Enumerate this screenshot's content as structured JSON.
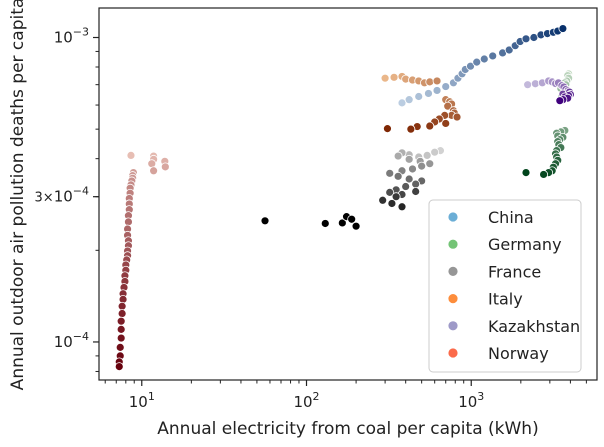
{
  "chart_data": {
    "type": "scatter",
    "title": "",
    "xlabel": "Annual electricity from coal per capita (kWh)",
    "ylabel": "Annual outdoor air pollution deaths per capita",
    "xscale": "log",
    "yscale": "log",
    "xlim": [
      5.5,
      5800
    ],
    "ylim": [
      7.5e-05,
      0.00125
    ],
    "x_ticks": [
      {
        "value": 10,
        "base": "10",
        "exp": "1"
      },
      {
        "value": 100,
        "base": "10",
        "exp": "2"
      },
      {
        "value": 1000,
        "base": "10",
        "exp": "3"
      }
    ],
    "y_ticks": [
      {
        "value": 0.0001,
        "base": "10",
        "exp": "−4",
        "mantissa": ""
      },
      {
        "value": 0.0003,
        "base": "10",
        "exp": "−4",
        "mantissa": "3×"
      },
      {
        "value": 0.001,
        "base": "10",
        "exp": "−3",
        "mantissa": ""
      }
    ],
    "legend_position": "lower-right",
    "series": [
      {
        "name": "China",
        "color": "#6baed6",
        "cmap": [
          "#dbe9f6",
          "#08306b"
        ],
        "points": [
          [
            380,
            0.00061
          ],
          [
            420,
            0.000625
          ],
          [
            480,
            0.00064
          ],
          [
            550,
            0.000655
          ],
          [
            620,
            0.00067
          ],
          [
            700,
            0.00069
          ],
          [
            780,
            0.00071
          ],
          [
            830,
            0.000735
          ],
          [
            880,
            0.00076
          ],
          [
            920,
            0.000785
          ],
          [
            990,
            0.000805
          ],
          [
            1080,
            0.00083
          ],
          [
            1200,
            0.00085
          ],
          [
            1350,
            0.00087
          ],
          [
            1550,
            0.00089
          ],
          [
            1700,
            0.00091
          ],
          [
            1850,
            0.00094
          ],
          [
            1980,
            0.00097
          ],
          [
            2150,
            0.00099
          ],
          [
            2400,
            0.001
          ],
          [
            2650,
            0.00102
          ],
          [
            2900,
            0.00103
          ],
          [
            3150,
            0.00104
          ],
          [
            3350,
            0.00105
          ],
          [
            3600,
            0.00107
          ]
        ]
      },
      {
        "name": "Germany",
        "color": "#74c476",
        "cmap": [
          "#e5f5e0",
          "#00441b"
        ],
        "points": [
          [
            3900,
            0.00076
          ],
          [
            3850,
            0.00075
          ],
          [
            3900,
            0.000735
          ],
          [
            3800,
            0.00072
          ],
          [
            3700,
            0.00071
          ],
          [
            3750,
            0.0007
          ],
          [
            3600,
            0.00069
          ],
          [
            3500,
            0.00068
          ],
          [
            3700,
            0.000665
          ],
          [
            3800,
            0.00065
          ],
          [
            3550,
            0.00064
          ],
          [
            3700,
            0.000495
          ],
          [
            3500,
            0.00049
          ],
          [
            3300,
            0.000485
          ],
          [
            3350,
            0.000475
          ],
          [
            3600,
            0.00047
          ],
          [
            3450,
            0.000462
          ],
          [
            3350,
            0.000455
          ],
          [
            3400,
            0.000445
          ],
          [
            3500,
            0.000435
          ],
          [
            3300,
            0.000425
          ],
          [
            3250,
            0.000415
          ],
          [
            3300,
            0.000405
          ],
          [
            3350,
            0.000395
          ],
          [
            3250,
            0.000385
          ],
          [
            3150,
            0.000375
          ],
          [
            3100,
            0.000365
          ],
          [
            2950,
            0.00036
          ],
          [
            2750,
            0.000355
          ],
          [
            2150,
            0.00036
          ]
        ]
      },
      {
        "name": "France",
        "color": "#969696",
        "cmap": [
          "#f0f0f0",
          "#252525"
        ],
        "points": [
          [
            650,
            0.000425
          ],
          [
            600,
            0.00042
          ],
          [
            540,
            0.00041
          ],
          [
            480,
            0.000405
          ],
          [
            420,
            0.000412
          ],
          [
            380,
            0.000418
          ],
          [
            360,
            0.000408
          ],
          [
            420,
            0.000398
          ],
          [
            490,
            0.000392
          ],
          [
            560,
            0.000385
          ],
          [
            500,
            0.000378
          ],
          [
            440,
            0.00037
          ],
          [
            380,
            0.000365
          ],
          [
            320,
            0.000358
          ],
          [
            360,
            0.00035
          ],
          [
            420,
            0.000343
          ],
          [
            500,
            0.000338
          ],
          [
            460,
            0.00033
          ],
          [
            400,
            0.000324
          ],
          [
            350,
            0.000316
          ],
          [
            320,
            0.00031
          ],
          [
            380,
            0.000305
          ],
          [
            460,
            0.000312
          ],
          [
            350,
            0.0003
          ],
          [
            290,
            0.000292
          ],
          [
            330,
            0.000285
          ],
          [
            380,
            0.000278
          ]
        ]
      },
      {
        "name": "Italy",
        "color": "#fd8d3c",
        "cmap": [
          "#fdd0a2",
          "#7f2704"
        ],
        "points": [
          [
            300,
            0.000735
          ],
          [
            340,
            0.00074
          ],
          [
            380,
            0.000745
          ],
          [
            400,
            0.00073
          ],
          [
            440,
            0.000725
          ],
          [
            480,
            0.00072
          ],
          [
            520,
            0.00071
          ],
          [
            560,
            0.000715
          ],
          [
            620,
            0.00072
          ],
          [
            700,
            0.000625
          ],
          [
            740,
            0.000615
          ],
          [
            760,
            0.000605
          ],
          [
            720,
            0.000595
          ],
          [
            780,
            0.000575
          ],
          [
            790,
            0.000565
          ],
          [
            760,
            0.000555
          ],
          [
            820,
            0.000548
          ],
          [
            690,
            0.000555
          ],
          [
            640,
            0.00054
          ],
          [
            600,
            0.000528
          ],
          [
            700,
            0.000522
          ],
          [
            560,
            0.000512
          ],
          [
            470,
            0.00051
          ],
          [
            430,
            0.0005
          ],
          [
            310,
            0.000502
          ]
        ]
      },
      {
        "name": "Kazakhstan",
        "color": "#9e9ac8",
        "cmap": [
          "#dadaeb",
          "#3f007d"
        ],
        "points": [
          [
            2200,
            0.0007
          ],
          [
            2450,
            0.000705
          ],
          [
            2700,
            0.00071
          ],
          [
            2950,
            0.00072
          ],
          [
            3100,
            0.000715
          ],
          [
            3250,
            0.000706
          ],
          [
            3380,
            0.00071
          ],
          [
            3550,
            0.000695
          ],
          [
            3650,
            0.000688
          ],
          [
            3750,
            0.000675
          ],
          [
            3850,
            0.000668
          ],
          [
            3800,
            0.000658
          ],
          [
            3600,
            0.000652
          ],
          [
            3950,
            0.000662
          ],
          [
            4000,
            0.00065
          ],
          [
            3900,
            0.000645
          ],
          [
            3700,
            0.000638
          ],
          [
            3850,
            0.000632
          ],
          [
            3600,
            0.000625
          ],
          [
            3450,
            0.00062
          ]
        ]
      },
      {
        "name": "Norway",
        "color": "#fb6a4a",
        "cmap": [
          "#fee0d2",
          "#67000d"
        ],
        "points": [
          [
            8.6,
            0.00041
          ],
          [
            11.8,
            0.000408
          ],
          [
            11.8,
            0.000398
          ],
          [
            13.8,
            0.000392
          ],
          [
            11.5,
            0.000385
          ],
          [
            13.9,
            0.000376
          ],
          [
            11.8,
            0.000365
          ],
          [
            8.9,
            0.00036
          ],
          [
            8.8,
            0.000352
          ],
          [
            8.8,
            0.000345
          ],
          [
            8.7,
            0.000338
          ],
          [
            8.6,
            0.000328
          ],
          [
            8.5,
            0.00032
          ],
          [
            8.5,
            0.000308
          ],
          [
            8.4,
            0.000296
          ],
          [
            8.4,
            0.000284
          ],
          [
            8.4,
            0.000272
          ],
          [
            8.3,
            0.00026
          ],
          [
            8.3,
            0.000248
          ],
          [
            8.2,
            0.000235
          ],
          [
            8.2,
            0.000224
          ],
          [
            8.3,
            0.000215
          ],
          [
            8.3,
            0.000207
          ],
          [
            8.2,
            0.000199
          ],
          [
            8.2,
            0.000192
          ],
          [
            8.1,
            0.000186
          ],
          [
            8.0,
            0.000179
          ],
          [
            8.0,
            0.000172
          ],
          [
            7.9,
            0.000165
          ],
          [
            7.9,
            0.000158
          ],
          [
            7.8,
            0.000151
          ],
          [
            7.7,
            0.000144
          ],
          [
            7.7,
            0.000138
          ],
          [
            7.6,
            0.000131
          ],
          [
            7.6,
            0.000124
          ],
          [
            7.5,
            0.000117
          ],
          [
            7.5,
            0.00011
          ],
          [
            7.5,
            0.000103
          ],
          [
            7.4,
            9.6e-05
          ],
          [
            7.4,
            9e-05
          ],
          [
            7.3,
            8.6e-05
          ],
          [
            7.3,
            8.3e-05
          ]
        ]
      }
    ],
    "extra_points": {
      "label": "unlabeled dark series",
      "color": "#000000",
      "points": [
        [
          56,
          0.00025
        ],
        [
          130,
          0.000245
        ],
        [
          165,
          0.000246
        ],
        [
          175,
          0.000258
        ],
        [
          188,
          0.000253
        ],
        [
          200,
          0.00024
        ]
      ]
    }
  }
}
